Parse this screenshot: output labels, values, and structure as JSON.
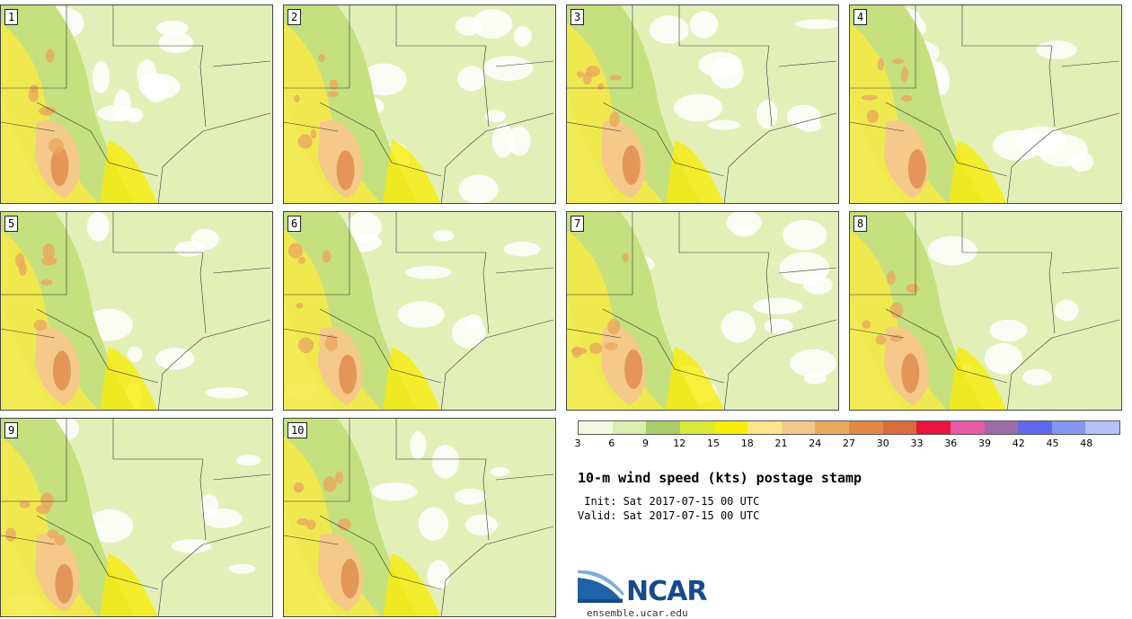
{
  "panels": [
    "1",
    "2",
    "3",
    "4",
    "5",
    "6",
    "7",
    "8",
    "9",
    "10"
  ],
  "legend": {
    "colors": [
      "#f3f9e1",
      "#dcedb0",
      "#a9cf6a",
      "#d8ea37",
      "#f8ec0a",
      "#fbe58c",
      "#f4c98a",
      "#eaa85e",
      "#e48847",
      "#d76d3b",
      "#e8133f",
      "#e75aa6",
      "#9a6da8",
      "#6168ef",
      "#8497f3",
      "#b4c2f5"
    ],
    "labels": [
      "3",
      "6",
      "9",
      "12",
      "15",
      "18",
      "21",
      "24",
      "27",
      "30",
      "33",
      "36",
      "39",
      "42",
      "45",
      "48"
    ]
  },
  "title": "10-m wind speed (kts) postage stamp",
  "init_text": " Init: Sat 2017-07-15 00 UTC",
  "valid_text": "Valid: Sat 2017-07-15 00 UTC",
  "logo": {
    "name": "NCAR",
    "url_text": "ensemble.ucar.edu",
    "icon": "ncar-swoosh-icon",
    "color": "#174a8b"
  }
}
